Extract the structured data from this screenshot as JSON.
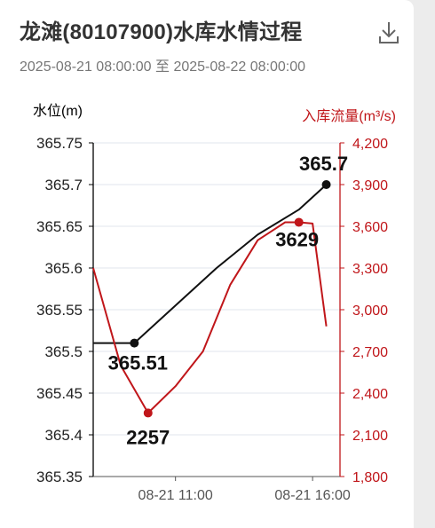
{
  "header": {
    "title": "龙滩(80107900)水库水情过程",
    "time_range": "2025-08-21 08:00:00 至 2025-08-22 08:00:00"
  },
  "icons": {
    "download": "download-icon"
  },
  "colors": {
    "water_level": "#111111",
    "inflow": "#c0161a",
    "axis_left": "#000000",
    "axis_right": "#c0161a",
    "grid": "#e2e5ee"
  },
  "chart_data": {
    "type": "line",
    "x_ticks": [
      "08-21 11:00",
      "08-21 16:00"
    ],
    "y_left": {
      "label": "水位(m)",
      "min": 365.35,
      "max": 365.75,
      "ticks": [
        "365.75",
        "365.7",
        "365.65",
        "365.6",
        "365.55",
        "365.5",
        "365.45",
        "365.4",
        "365.35"
      ]
    },
    "y_right": {
      "label": "入库流量(m³/s)",
      "min": 1800,
      "max": 4200,
      "ticks": [
        "4,200",
        "3,900",
        "3,600",
        "3,300",
        "3,000",
        "2,700",
        "2,400",
        "2,100",
        "1,800"
      ]
    },
    "series": [
      {
        "axis": "left",
        "hours": [
          8,
          9.5,
          11,
          12.5,
          14,
          15.5,
          16.5
        ],
        "values": [
          365.51,
          365.51,
          365.555,
          365.6,
          365.64,
          365.67,
          365.7
        ],
        "markers": [
          {
            "hour": 9.5,
            "value": 365.51,
            "label": "365.51"
          },
          {
            "hour": 16.5,
            "value": 365.7,
            "label": "365.7"
          }
        ]
      },
      {
        "axis": "right",
        "hours": [
          8,
          9,
          10,
          11,
          12,
          13,
          14,
          15,
          15.5,
          16,
          16.5
        ],
        "values": [
          3300,
          2600,
          2257,
          2450,
          2700,
          3180,
          3500,
          3629,
          3629,
          3620,
          2880
        ],
        "markers": [
          {
            "hour": 10,
            "value": 2257,
            "label": "2257"
          },
          {
            "hour": 15.5,
            "value": 3629,
            "label": "3629"
          }
        ]
      }
    ]
  }
}
